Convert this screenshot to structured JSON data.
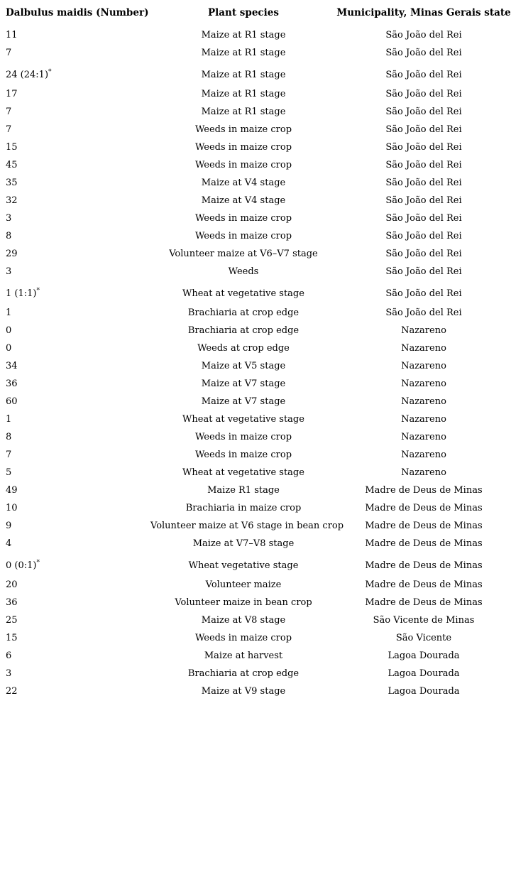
{
  "page": {
    "background": "#ffffff",
    "text_color": "#000000"
  },
  "table": {
    "columns": [
      {
        "label": "Dalbulus maidis (Number)"
      },
      {
        "label": "Plant species"
      },
      {
        "label": "Municipality, Minas Gerais state"
      }
    ],
    "footnote_symbol": "*",
    "rows": [
      {
        "number": "11",
        "sup": "",
        "plant": "Maize at R1 stage",
        "municipality": "São João del Rei"
      },
      {
        "number": "7",
        "sup": "",
        "plant": "Maize at R1 stage",
        "municipality": "São João del Rei"
      },
      {
        "number": "24 (24:1)",
        "sup": "*",
        "plant": "Maize at R1 stage",
        "municipality": "São João del Rei"
      },
      {
        "number": "17",
        "sup": "",
        "plant": "Maize at R1 stage",
        "municipality": "São João del Rei"
      },
      {
        "number": "7",
        "sup": "",
        "plant": "Maize at R1 stage",
        "municipality": "São João del Rei"
      },
      {
        "number": "7",
        "sup": "",
        "plant": "Weeds in maize crop",
        "municipality": "São João del Rei"
      },
      {
        "number": "15",
        "sup": "",
        "plant": "Weeds in maize crop",
        "municipality": "São João del Rei"
      },
      {
        "number": "45",
        "sup": "",
        "plant": "Weeds in maize crop",
        "municipality": "São João del Rei"
      },
      {
        "number": "35",
        "sup": "",
        "plant": "Maize at V4 stage",
        "municipality": "São João del Rei"
      },
      {
        "number": "32",
        "sup": "",
        "plant": "Maize at V4 stage",
        "municipality": "São João del Rei"
      },
      {
        "number": "3",
        "sup": "",
        "plant": "Weeds in maize crop",
        "municipality": "São João del Rei"
      },
      {
        "number": "8",
        "sup": "",
        "plant": "Weeds in maize crop",
        "municipality": "São João del Rei"
      },
      {
        "number": "29",
        "sup": "",
        "plant": "Volunteer maize at V6–V7 stage",
        "municipality": "São João del Rei"
      },
      {
        "number": "3",
        "sup": "",
        "plant": "Weeds",
        "municipality": "São João del Rei"
      },
      {
        "number": "1 (1:1)",
        "sup": "*",
        "plant": "Wheat at vegetative stage",
        "municipality": "São João del Rei"
      },
      {
        "number": "1",
        "sup": "",
        "plant": "Brachiaria at crop edge",
        "municipality": "São João del Rei"
      },
      {
        "number": "0",
        "sup": "",
        "plant": "Brachiaria at crop edge",
        "municipality": "Nazareno"
      },
      {
        "number": "0",
        "sup": "",
        "plant": "Weeds at crop edge",
        "municipality": "Nazareno"
      },
      {
        "number": "34",
        "sup": "",
        "plant": "Maize at V5 stage",
        "municipality": "Nazareno"
      },
      {
        "number": "36",
        "sup": "",
        "plant": "Maize at V7 stage",
        "municipality": "Nazareno"
      },
      {
        "number": "60",
        "sup": "",
        "plant": "Maize at V7 stage",
        "municipality": "Nazareno"
      },
      {
        "number": "1",
        "sup": "",
        "plant": "Wheat at vegetative stage",
        "municipality": "Nazareno"
      },
      {
        "number": "8",
        "sup": "",
        "plant": "Weeds in maize crop",
        "municipality": "Nazareno"
      },
      {
        "number": "7",
        "sup": "",
        "plant": "Weeds in maize crop",
        "municipality": "Nazareno"
      },
      {
        "number": "5",
        "sup": "",
        "plant": "Wheat at vegetative stage",
        "municipality": "Nazareno"
      },
      {
        "number": "49",
        "sup": "",
        "plant": "Maize R1 stage",
        "municipality": "Madre de Deus de Minas"
      },
      {
        "number": "10",
        "sup": "",
        "plant": "Brachiaria in maize crop",
        "municipality": "Madre de Deus de Minas"
      },
      {
        "number": "9",
        "sup": "",
        "plant": "Volunteer maize at V6 stage in bean crop",
        "municipality": "Madre de Deus de Minas"
      },
      {
        "number": "4",
        "sup": "",
        "plant": "Maize at V7–V8 stage",
        "municipality": "Madre de Deus de Minas"
      },
      {
        "number": "0 (0:1)",
        "sup": "*",
        "plant": "Wheat vegetative stage",
        "municipality": "Madre de Deus de Minas"
      },
      {
        "number": "20",
        "sup": "",
        "plant": "Volunteer maize",
        "municipality": "Madre de Deus de Minas"
      },
      {
        "number": "36",
        "sup": "",
        "plant": "Volunteer maize in bean crop",
        "municipality": "Madre de Deus de Minas"
      },
      {
        "number": "25",
        "sup": "",
        "plant": "Maize at V8 stage",
        "municipality": "São Vicente de Minas"
      },
      {
        "number": "15",
        "sup": "",
        "plant": "Weeds in maize crop",
        "municipality": "São Vicente"
      },
      {
        "number": "6",
        "sup": "",
        "plant": "Maize at harvest",
        "municipality": "Lagoa Dourada"
      },
      {
        "number": "3",
        "sup": "",
        "plant": "Brachiaria at crop edge",
        "municipality": "Lagoa Dourada"
      },
      {
        "number": "22",
        "sup": "",
        "plant": "Maize at V9 stage",
        "municipality": "Lagoa Dourada"
      }
    ]
  }
}
